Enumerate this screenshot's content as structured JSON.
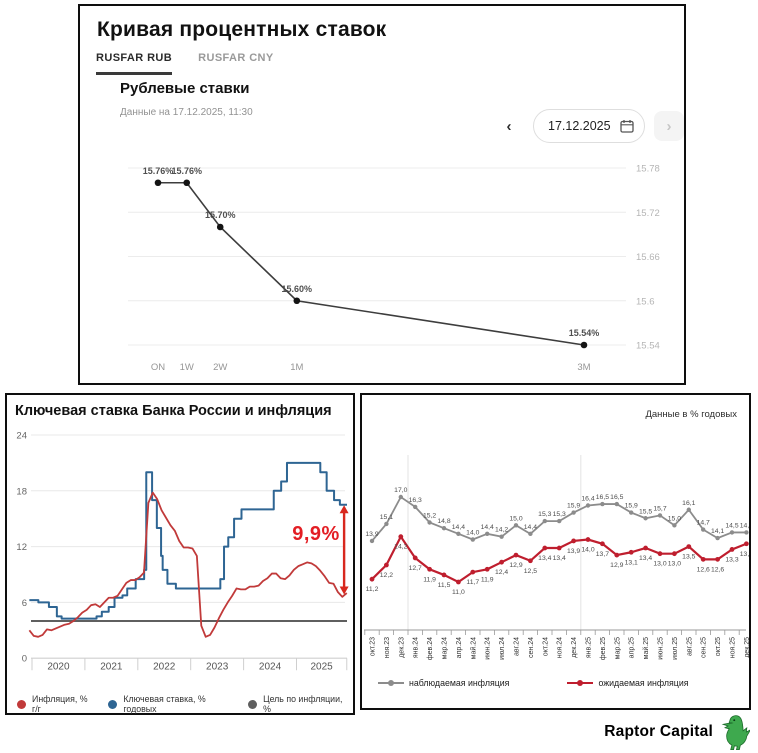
{
  "header": {
    "title": "Кривая процентных ставок",
    "tabs": [
      {
        "label": "RUSFAR RUB",
        "active": true
      },
      {
        "label": "RUSFAR CNY",
        "active": false
      }
    ],
    "subtitle": "Рублевые ставки",
    "data_note": "Данные на 17.12.2025, 11:30",
    "datepicker": {
      "value": "17.12.2025",
      "prev": "‹",
      "next": "›"
    }
  },
  "footer": {
    "brand": "Raptor Capital"
  },
  "chart_data": [
    {
      "id": "rusfar_curve",
      "type": "line",
      "title": "Кривая процентных ставок",
      "categories": [
        "ON",
        "1W",
        "2W",
        "1M",
        "3M"
      ],
      "x_days": [
        1,
        7,
        14,
        30,
        90
      ],
      "values": [
        15.76,
        15.76,
        15.7,
        15.6,
        15.54
      ],
      "y_ticks": [
        {
          "v": 15.78,
          "label": "15.78"
        },
        {
          "v": 15.72,
          "label": "15.72"
        },
        {
          "v": 15.66,
          "label": "15.66"
        },
        {
          "v": 15.6,
          "label": "15.6"
        },
        {
          "v": 15.54,
          "label": "15.54"
        }
      ],
      "ylim": [
        15.52,
        15.8
      ],
      "grid": "horizontal",
      "line_color": "#3d3d3d",
      "marker_color": "#141414"
    },
    {
      "id": "key_rate_inflation",
      "type": "line",
      "title": "Ключевая ставка Банка России и инфляция",
      "y_ticks": [
        24,
        18,
        12,
        6,
        0
      ],
      "ylim": [
        0,
        26
      ],
      "x_range": [
        2019.93,
        2025.95
      ],
      "x_year_ticks": [
        2020,
        2021,
        2022,
        2023,
        2024,
        2025
      ],
      "x_year_labels": [
        "2020",
        "2021",
        "2022",
        "2023",
        "2024",
        "2025"
      ],
      "series": [
        {
          "name": "Инфляция, % г/г",
          "type": "line",
          "color": "#c13a3a",
          "x_start": 2019.95,
          "step_months": 1,
          "values": [
            3.0,
            2.4,
            2.3,
            2.5,
            3.1,
            3.0,
            3.2,
            3.4,
            3.6,
            3.7,
            4.0,
            4.4,
            4.9,
            5.2,
            5.7,
            5.8,
            5.5,
            6.0,
            6.5,
            6.5,
            6.7,
            7.4,
            8.1,
            8.4,
            8.4,
            8.7,
            9.2,
            16.7,
            17.8,
            17.1,
            15.9,
            15.1,
            14.3,
            13.7,
            12.6,
            11.9,
            11.9,
            11.8,
            11.0,
            3.5,
            2.3,
            2.5,
            3.3,
            4.3,
            5.2,
            6.0,
            6.7,
            7.5,
            7.4,
            7.4,
            7.7,
            7.7,
            7.8,
            8.3,
            8.6,
            9.1,
            9.1,
            8.6,
            8.5,
            8.9,
            9.5,
            9.9,
            10.1,
            10.3,
            10.2,
            9.9,
            9.4,
            8.8,
            8.1,
            8.0,
            7.1,
            6.6,
            7.0
          ]
        },
        {
          "name": "Ключевая ставка, % годовых",
          "type": "step",
          "color": "#2e6593",
          "points": [
            [
              2019.95,
              6.25
            ],
            [
              2020.12,
              6.0
            ],
            [
              2020.32,
              5.5
            ],
            [
              2020.47,
              4.5
            ],
            [
              2020.56,
              4.25
            ],
            [
              2021.22,
              4.5
            ],
            [
              2021.32,
              5.0
            ],
            [
              2021.45,
              5.5
            ],
            [
              2021.56,
              6.5
            ],
            [
              2021.71,
              6.75
            ],
            [
              2021.8,
              7.5
            ],
            [
              2021.96,
              8.5
            ],
            [
              2022.12,
              9.5
            ],
            [
              2022.16,
              20.0
            ],
            [
              2022.27,
              17.0
            ],
            [
              2022.36,
              14.0
            ],
            [
              2022.44,
              11.0
            ],
            [
              2022.47,
              9.5
            ],
            [
              2022.56,
              8.0
            ],
            [
              2022.72,
              7.5
            ],
            [
              2023.56,
              8.5
            ],
            [
              2023.63,
              12.0
            ],
            [
              2023.71,
              13.0
            ],
            [
              2023.82,
              15.0
            ],
            [
              2023.96,
              16.0
            ],
            [
              2024.57,
              18.0
            ],
            [
              2024.71,
              19.0
            ],
            [
              2024.82,
              21.0
            ],
            [
              2025.45,
              20.0
            ],
            [
              2025.57,
              18.0
            ],
            [
              2025.71,
              17.0
            ],
            [
              2025.82,
              16.5
            ],
            [
              2025.95,
              16.5
            ]
          ]
        },
        {
          "name": "Цель по инфляции, %",
          "type": "hline",
          "color": "#5f5f5f",
          "value": 4
        }
      ],
      "annotation": {
        "text": "9,9%",
        "color": "#e31e24"
      },
      "arrow": {
        "x": 2025.9,
        "from": 16.45,
        "to": 6.85,
        "color": "#d8281e"
      }
    },
    {
      "id": "inflation_expectations",
      "type": "line",
      "note": "Данные в % годовых",
      "categories": [
        "окт.23",
        "ноя.23",
        "дек.23",
        "янв.24",
        "фев.24",
        "мар.24",
        "апр.24",
        "май.24",
        "июн.24",
        "июл.24",
        "авг.24",
        "сен.24",
        "окт.24",
        "ноя.24",
        "дек.24",
        "янв.25",
        "фев.25",
        "мар.25",
        "апр.25",
        "май.25",
        "июн.25",
        "июл.25",
        "авг.25",
        "сен.25",
        "окт.25",
        "ноя.25",
        "дек.25"
      ],
      "series": [
        {
          "name": "наблюдаемая инфляция",
          "color": "#8c8c8c",
          "values": [
            13.9,
            15.1,
            17.0,
            16.3,
            15.2,
            14.8,
            14.4,
            14.0,
            14.4,
            14.2,
            15.0,
            14.4,
            15.3,
            15.3,
            15.9,
            16.4,
            16.5,
            16.5,
            15.9,
            15.5,
            15.7,
            15.0,
            16.1,
            14.7,
            14.1,
            14.5,
            14.5
          ]
        },
        {
          "name": "ожидаемая инфляция",
          "color": "#bf1e2e",
          "values": [
            11.2,
            12.2,
            14.2,
            12.7,
            11.9,
            11.5,
            11.0,
            11.7,
            11.9,
            12.4,
            12.9,
            12.5,
            13.4,
            13.4,
            13.9,
            14.0,
            13.7,
            12.9,
            13.1,
            13.4,
            13.0,
            13.0,
            13.5,
            12.6,
            12.6,
            13.3,
            13.7
          ]
        }
      ],
      "vgrid_after_index": [
        2,
        14
      ],
      "legend_position": "bottom"
    }
  ]
}
